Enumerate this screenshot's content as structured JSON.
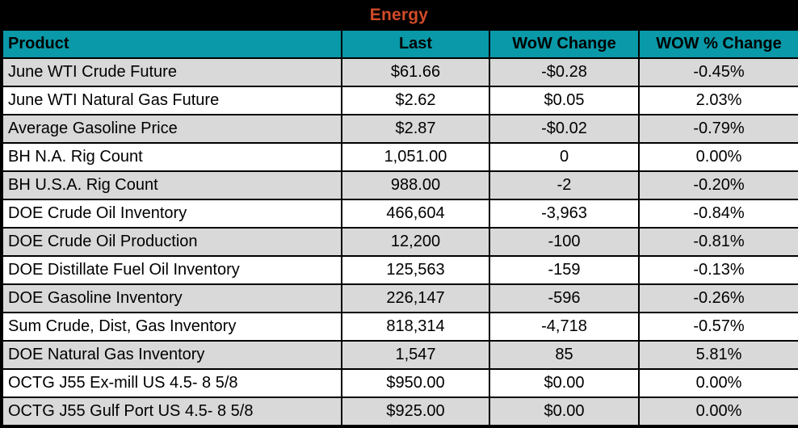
{
  "title": "Energy",
  "colors": {
    "title_bg": "#000000",
    "title_text": "#D14B29",
    "header_bg": "#0999A8",
    "header_text": "#000000",
    "row_bg": "#FFFFFF",
    "row_alt_bg": "#D9D9D9",
    "border": "#000000"
  },
  "chart_data": {
    "type": "table",
    "title": "Energy",
    "columns": [
      "Product",
      "Last",
      "WoW Change",
      "WOW % Change"
    ],
    "rows": [
      [
        "June WTI Crude Future",
        "$61.66",
        "-$0.28",
        "-0.45%"
      ],
      [
        "June WTI Natural Gas Future",
        "$2.62",
        "$0.05",
        "2.03%"
      ],
      [
        "Average Gasoline Price",
        "$2.87",
        "-$0.02",
        "-0.79%"
      ],
      [
        "BH N.A. Rig Count",
        "1,051.00",
        "0",
        "0.00%"
      ],
      [
        "BH U.S.A. Rig Count",
        "988.00",
        "-2",
        "-0.20%"
      ],
      [
        "DOE Crude Oil Inventory",
        "466,604",
        "-3,963",
        "-0.84%"
      ],
      [
        "DOE Crude Oil Production",
        "12,200",
        "-100",
        "-0.81%"
      ],
      [
        "DOE Distillate Fuel Oil Inventory",
        "125,563",
        "-159",
        "-0.13%"
      ],
      [
        "DOE Gasoline Inventory",
        "226,147",
        "-596",
        "-0.26%"
      ],
      [
        "Sum Crude, Dist, Gas Inventory",
        "818,314",
        "-4,718",
        "-0.57%"
      ],
      [
        "DOE Natural Gas Inventory",
        "1,547",
        "85",
        "5.81%"
      ],
      [
        "OCTG J55 Ex-mill US 4.5- 8 5/8",
        "$950.00",
        "$0.00",
        "0.00%"
      ],
      [
        "OCTG J55 Gulf Port US 4.5- 8 5/8",
        "$925.00",
        "$0.00",
        "0.00%"
      ]
    ]
  }
}
